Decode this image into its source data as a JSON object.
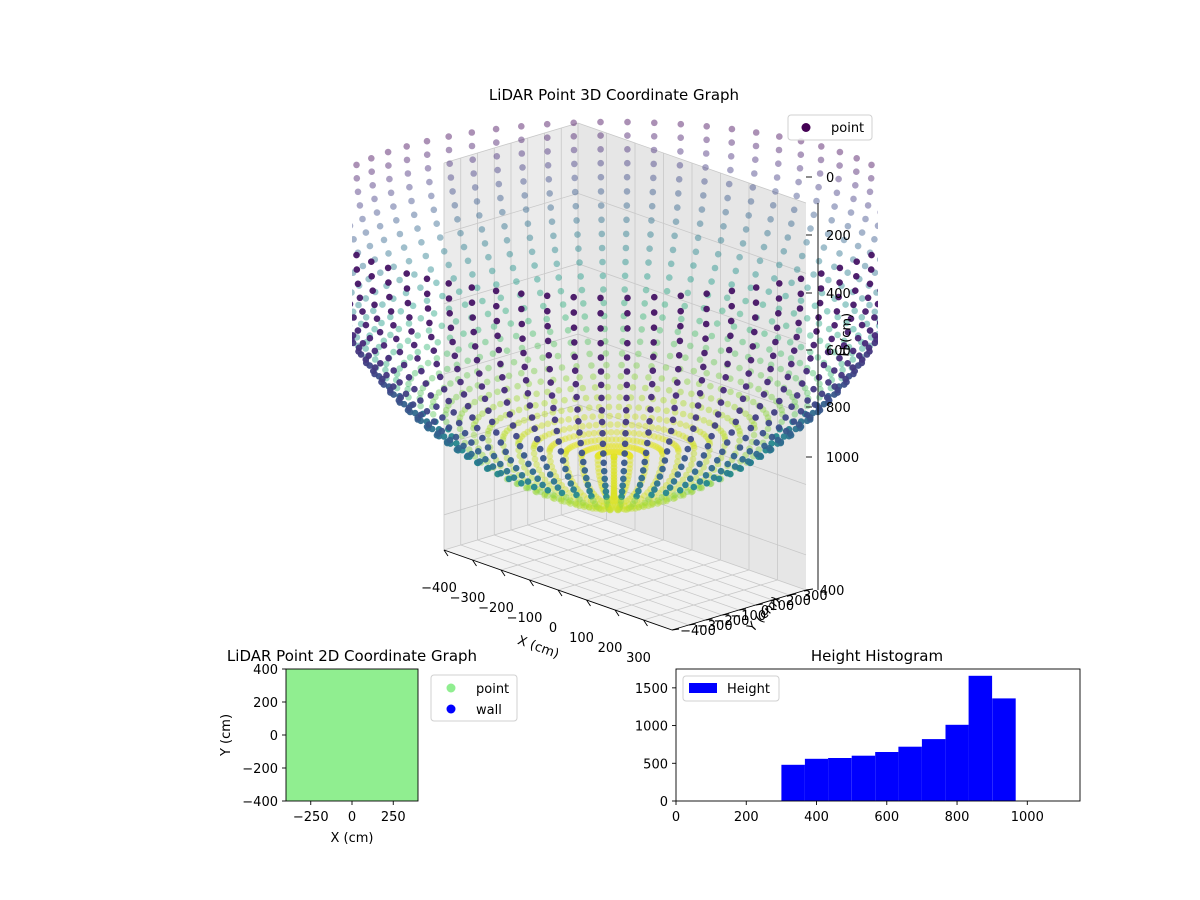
{
  "chart_data": [
    {
      "type": "scatter",
      "title": "LiDAR Point 3D Coordinate Graph",
      "xlabel": "X (cm)",
      "ylabel": "Y (cm)",
      "zlabel": "H (cm)",
      "xlim": [
        -400,
        400
      ],
      "ylim": [
        -400,
        400
      ],
      "zlim": [
        0,
        1100
      ],
      "z_inverted": true,
      "x_ticks": [
        -400,
        -300,
        -200,
        -100,
        0,
        100,
        200,
        300
      ],
      "y_ticks": [
        -400,
        -300,
        -200,
        -100,
        0,
        100,
        200,
        300,
        400
      ],
      "z_ticks": [
        0,
        200,
        400,
        600,
        800,
        1000
      ],
      "colormap": "viridis",
      "legend": {
        "entries": [
          "point"
        ],
        "placement": "top-right"
      },
      "series": [
        {
          "name": "point",
          "shape": "hemispherical bowl",
          "rings": 70,
          "points_per_ring": 30,
          "rim_height": 0,
          "bottom_height": 960,
          "radius_xy": 400
        }
      ]
    },
    {
      "type": "scatter",
      "title": "LiDAR Point 2D Coordinate Graph",
      "xlabel": "X (cm)",
      "ylabel": "Y (cm)",
      "xlim": [
        -400,
        400
      ],
      "ylim": [
        -400,
        400
      ],
      "x_ticks": [
        -250,
        0,
        250
      ],
      "y_ticks": [
        -400,
        -200,
        0,
        200,
        400
      ],
      "legend": {
        "entries": [
          "point",
          "wall"
        ],
        "placement": "outside-right"
      },
      "series": [
        {
          "name": "point",
          "color": "#90ee90",
          "coverage": "fills the full plot area"
        },
        {
          "name": "wall",
          "color": "#0000ff"
        }
      ]
    },
    {
      "type": "bar",
      "title": "Height Histogram",
      "xlabel": "",
      "ylabel": "",
      "xlim": [
        0,
        1150
      ],
      "ylim": [
        0,
        1750
      ],
      "x_ticks": [
        0,
        200,
        400,
        600,
        800,
        1000
      ],
      "y_ticks": [
        0,
        500,
        1000,
        1500
      ],
      "legend": {
        "entries": [
          "Height"
        ],
        "placement": "top-left"
      },
      "series": [
        {
          "name": "Height",
          "color": "#0000ff",
          "bin_edges": [
            300,
            367,
            433,
            500,
            567,
            633,
            700,
            767,
            833,
            900,
            967
          ],
          "values": [
            480,
            560,
            570,
            600,
            650,
            720,
            820,
            1010,
            1660,
            1360
          ]
        }
      ]
    }
  ]
}
